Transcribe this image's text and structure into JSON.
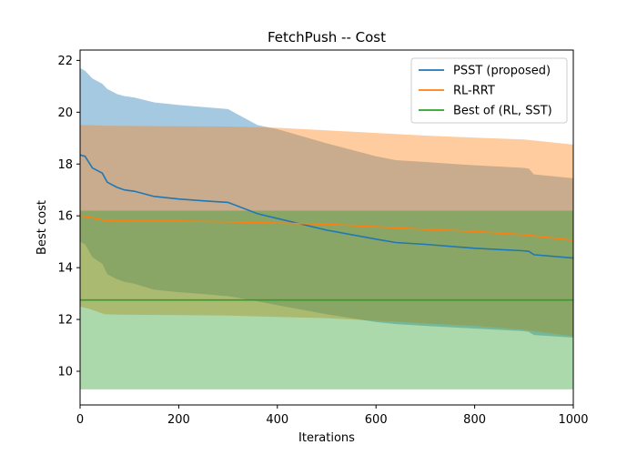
{
  "chart_data": {
    "type": "line",
    "title": "FetchPush -- Cost",
    "xlabel": "Iterations",
    "ylabel": "Best cost",
    "xlim": [
      0,
      1000
    ],
    "ylim": [
      8.7,
      22.4
    ],
    "xticks": [
      0,
      200,
      400,
      600,
      800,
      1000
    ],
    "yticks": [
      10,
      12,
      14,
      16,
      18,
      20,
      22
    ],
    "grid": false,
    "legend_position": "top-right",
    "series": [
      {
        "name": "PSST (proposed)",
        "color": "#1f77b4",
        "band_alpha": 0.4,
        "x": [
          0,
          10,
          25,
          45,
          55,
          65,
          75,
          90,
          110,
          150,
          200,
          250,
          300,
          360,
          400,
          500,
          600,
          640,
          700,
          800,
          900,
          910,
          920,
          1000
        ],
        "y": [
          18.35,
          18.3,
          17.85,
          17.65,
          17.3,
          17.2,
          17.1,
          17.0,
          16.95,
          16.75,
          16.65,
          16.58,
          16.52,
          16.08,
          15.9,
          15.45,
          15.1,
          14.97,
          14.9,
          14.75,
          14.65,
          14.63,
          14.5,
          14.37
        ],
        "upper": [
          21.7,
          21.6,
          21.3,
          21.1,
          20.9,
          20.8,
          20.7,
          20.62,
          20.57,
          20.38,
          20.28,
          20.2,
          20.12,
          19.5,
          19.35,
          18.8,
          18.3,
          18.15,
          18.08,
          17.95,
          17.85,
          17.82,
          17.6,
          17.45
        ],
        "lower": [
          15.0,
          14.9,
          14.4,
          14.15,
          13.75,
          13.65,
          13.55,
          13.45,
          13.38,
          13.15,
          13.05,
          12.98,
          12.9,
          12.7,
          12.55,
          12.2,
          11.9,
          11.82,
          11.75,
          11.65,
          11.55,
          11.52,
          11.4,
          11.3
        ]
      },
      {
        "name": "RL-RRT",
        "color": "#ff7f0e",
        "band_alpha": 0.4,
        "x": [
          0,
          20,
          50,
          100,
          200,
          300,
          400,
          500,
          600,
          700,
          800,
          900,
          1000
        ],
        "y": [
          16.0,
          15.95,
          15.82,
          15.8,
          15.8,
          15.77,
          15.72,
          15.68,
          15.58,
          15.48,
          15.4,
          15.27,
          15.05
        ],
        "upper": [
          19.5,
          19.5,
          19.48,
          19.47,
          19.46,
          19.45,
          19.4,
          19.3,
          19.2,
          19.1,
          19.02,
          18.95,
          18.75
        ],
        "lower": [
          12.5,
          12.4,
          12.2,
          12.18,
          12.17,
          12.15,
          12.1,
          12.05,
          11.95,
          11.85,
          11.75,
          11.6,
          11.35
        ]
      },
      {
        "name": "Best of (RL, SST)",
        "color": "#2ca02c",
        "band_alpha": 0.4,
        "x": [
          0,
          1000
        ],
        "y": [
          12.75,
          12.75
        ],
        "upper": [
          16.2,
          16.2
        ],
        "lower": [
          9.3,
          9.3
        ]
      }
    ]
  }
}
